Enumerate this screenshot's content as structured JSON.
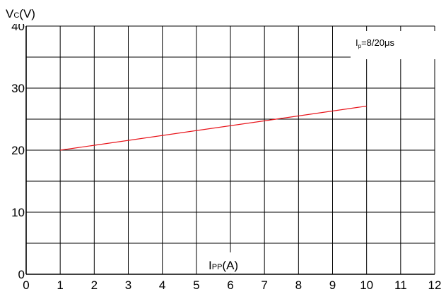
{
  "chart_data": {
    "type": "line",
    "ylabel_main": "V",
    "ylabel_sub": "C",
    "ylabel_unit": "(V)",
    "xlabel_main": "I",
    "xlabel_sub": "PP",
    "xlabel_unit": "(A)",
    "annotation_main": "I",
    "annotation_sub": "p",
    "annotation_rest": "=8/20μs",
    "xlim": [
      0,
      12
    ],
    "ylim": [
      0,
      40
    ],
    "x_ticks": [
      0,
      1,
      2,
      3,
      4,
      5,
      6,
      7,
      8,
      9,
      10,
      11,
      12
    ],
    "y_ticks": [
      0,
      10,
      20,
      30,
      40
    ],
    "y_minor_step": 5,
    "grid": true,
    "series": [
      {
        "x": [
          1,
          10
        ],
        "y": [
          20,
          27.1
        ],
        "color": "#e8141b"
      }
    ]
  }
}
